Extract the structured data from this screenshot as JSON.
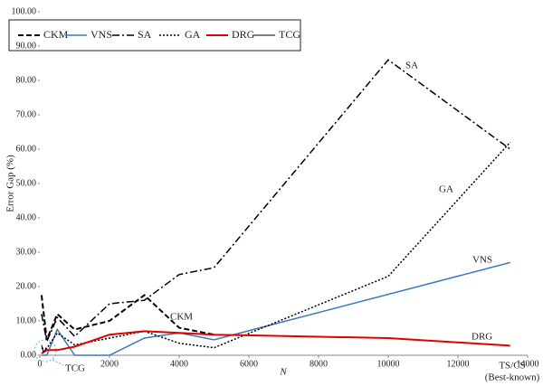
{
  "chart_data": {
    "type": "line",
    "y_label": "Error Gap (%)",
    "x_label": "N",
    "annotations": [
      "SA",
      "GA",
      "VNS",
      "DRG",
      "CKM",
      "TCG",
      "TS/CS",
      "(Best-known)"
    ],
    "xlim": [
      0,
      14000
    ],
    "xticks": [
      0,
      2000,
      4000,
      6000,
      8000,
      10000,
      12000,
      14000
    ],
    "ylim": [
      0,
      100
    ],
    "yticks": [
      {
        "value": 0,
        "label": "0.00"
      },
      {
        "value": 10,
        "label": "10.00"
      },
      {
        "value": 20,
        "label": "20.00"
      },
      {
        "value": 30,
        "label": "30.00"
      },
      {
        "value": 40,
        "label": "40.00"
      },
      {
        "value": 50,
        "label": "50.00"
      },
      {
        "value": 60,
        "label": "60.00"
      },
      {
        "value": 70,
        "label": "70.00"
      },
      {
        "value": 80,
        "label": "80.00"
      },
      {
        "value": 90,
        "label": "90.00"
      },
      {
        "value": 100,
        "label": "100.00"
      }
    ],
    "grid": false,
    "series": [
      {
        "name": "CKM",
        "color": "#000000",
        "dash": "6,3",
        "width": 2,
        "x": [
          50,
          200,
          500,
          1000,
          2000,
          3000,
          4000,
          5000
        ],
        "values": [
          17.5,
          4.5,
          12,
          7.5,
          10,
          17.5,
          8,
          6
        ]
      },
      {
        "name": "VNS",
        "color": "#3a78c0",
        "dash": "none",
        "width": 1.5,
        "x": [
          50,
          200,
          500,
          1000,
          2000,
          3000,
          4000,
          5000,
          13500
        ],
        "values": [
          0,
          0,
          7.5,
          0,
          0,
          5,
          6.5,
          4.5,
          27
        ]
      },
      {
        "name": "SA",
        "color": "#000000",
        "dash": "8,3,2,3",
        "width": 1.5,
        "x": [
          50,
          200,
          500,
          1000,
          2000,
          3000,
          4000,
          5000,
          10000,
          13500
        ],
        "values": [
          12,
          4,
          11,
          5.5,
          15,
          16,
          23.5,
          25.5,
          86,
          60
        ]
      },
      {
        "name": "GA",
        "color": "#000000",
        "dash": "2,2",
        "width": 1.5,
        "x": [
          50,
          200,
          500,
          1000,
          2000,
          3000,
          4000,
          5000,
          10000,
          13500
        ],
        "values": [
          2,
          2,
          6.5,
          3,
          5,
          7,
          3.5,
          2.2,
          23,
          62
        ]
      },
      {
        "name": "DRG",
        "color": "#e00000",
        "dash": "none",
        "width": 2,
        "x": [
          50,
          200,
          500,
          1000,
          2000,
          3000,
          4000,
          5000,
          10000,
          13500
        ],
        "values": [
          0.5,
          1.5,
          1.5,
          2.5,
          6,
          7,
          6.5,
          6,
          5,
          2.8
        ]
      },
      {
        "name": "TCG",
        "color": "#000000",
        "dash": "none",
        "width": 1,
        "x": [
          50,
          100,
          200
        ],
        "values": [
          3,
          1,
          2
        ]
      }
    ]
  }
}
